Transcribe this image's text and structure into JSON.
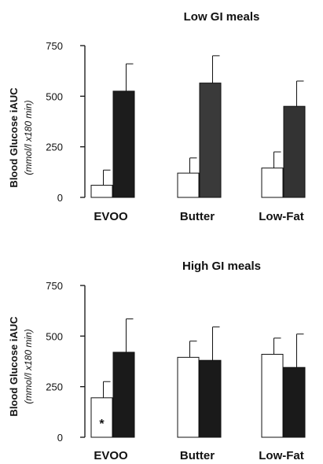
{
  "chart_data": [
    {
      "type": "bar",
      "title": "Low  GI meals",
      "ylabel": "Blood Glucose iAUC",
      "ylabel_sub": "(mmol/l x180 min)",
      "ylim": [
        0,
        750
      ],
      "yticks": [
        0,
        250,
        500,
        750
      ],
      "categories": [
        "EVOO",
        "Butter",
        "Low-Fat"
      ],
      "series": [
        {
          "color": "#ffffff",
          "values": [
            60,
            120,
            145
          ],
          "errors": [
            75,
            75,
            80
          ]
        },
        {
          "color_by_category": [
            "#1c1c1c",
            "#3a3a3a",
            "#333333"
          ],
          "values": [
            525,
            565,
            450
          ],
          "errors": [
            135,
            135,
            125
          ]
        }
      ],
      "annotations": [],
      "grid": false,
      "legend": "none"
    },
    {
      "type": "bar",
      "title": "High GI meals",
      "ylabel": "Blood Glucose iAUC",
      "ylabel_sub": "(mmol/l x180 min)",
      "ylim": [
        0,
        750
      ],
      "yticks": [
        0,
        250,
        500,
        750
      ],
      "categories": [
        "EVOO",
        "Butter",
        "Low-Fat"
      ],
      "series": [
        {
          "color": "#ffffff",
          "values": [
            195,
            395,
            410
          ],
          "errors": [
            80,
            80,
            80
          ]
        },
        {
          "color_by_category": [
            "#1a1a1a",
            "#1a1a1a",
            "#1a1a1a"
          ],
          "values": [
            420,
            380,
            345
          ],
          "errors": [
            165,
            165,
            165
          ]
        }
      ],
      "annotations": [
        {
          "category_index": 0,
          "series_index": 0,
          "text": "*"
        }
      ],
      "grid": false,
      "legend": "none"
    }
  ]
}
